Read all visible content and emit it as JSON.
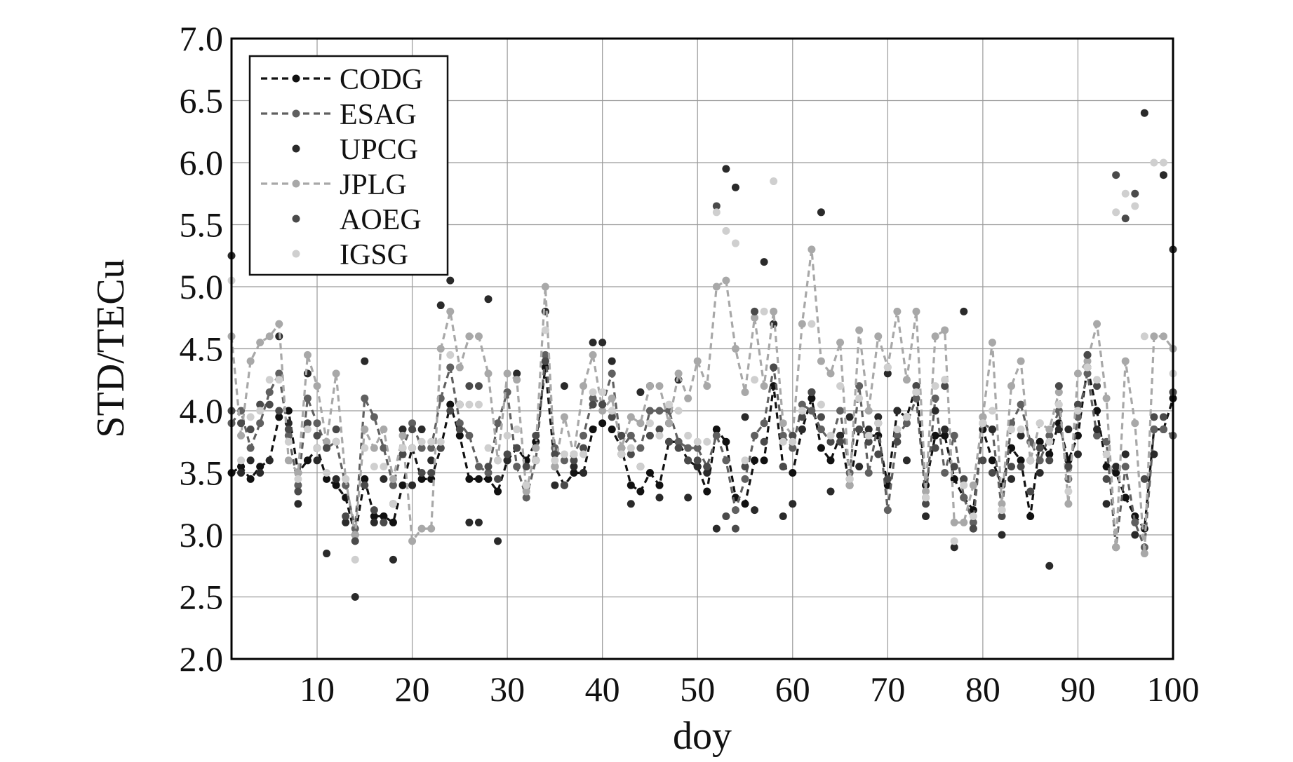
{
  "chart_data": {
    "type": "line",
    "xlabel": "doy",
    "ylabel": "STD/TECu",
    "xlim": [
      1,
      100
    ],
    "ylim": [
      2.0,
      7.0
    ],
    "x_ticks": [
      10,
      20,
      30,
      40,
      50,
      60,
      70,
      80,
      90,
      100
    ],
    "y_ticks": [
      2.0,
      2.5,
      3.0,
      3.5,
      4.0,
      4.5,
      5.0,
      5.5,
      6.0,
      6.5,
      7.0
    ],
    "grid": true,
    "legend_position": "top-left",
    "x": [
      1,
      2,
      3,
      4,
      5,
      6,
      7,
      8,
      9,
      10,
      11,
      12,
      13,
      14,
      15,
      16,
      17,
      18,
      19,
      20,
      21,
      22,
      23,
      24,
      25,
      26,
      27,
      28,
      29,
      30,
      31,
      32,
      33,
      34,
      35,
      36,
      37,
      38,
      39,
      40,
      41,
      42,
      43,
      44,
      45,
      46,
      47,
      48,
      49,
      50,
      51,
      52,
      53,
      54,
      55,
      56,
      57,
      58,
      59,
      60,
      61,
      62,
      63,
      64,
      65,
      66,
      67,
      68,
      69,
      70,
      71,
      72,
      73,
      74,
      75,
      76,
      77,
      78,
      79,
      80,
      81,
      82,
      83,
      84,
      85,
      86,
      87,
      88,
      89,
      90,
      91,
      92,
      93,
      94,
      95,
      96,
      97,
      98,
      99,
      100
    ],
    "series": [
      {
        "name": "CODG",
        "style": "dashed-line-markers",
        "color": "#111111",
        "values": [
          3.5,
          3.55,
          3.45,
          3.55,
          3.6,
          3.95,
          4.0,
          3.5,
          3.6,
          3.7,
          3.45,
          3.4,
          3.3,
          3.0,
          3.45,
          3.15,
          3.15,
          3.1,
          3.4,
          3.7,
          3.45,
          3.45,
          3.7,
          4.05,
          3.8,
          3.45,
          3.45,
          3.45,
          3.35,
          3.6,
          3.7,
          3.6,
          3.75,
          4.35,
          3.55,
          3.4,
          3.5,
          3.5,
          3.85,
          3.9,
          3.85,
          3.7,
          3.4,
          3.35,
          3.5,
          3.4,
          3.75,
          3.75,
          3.6,
          3.55,
          3.35,
          3.85,
          3.75,
          3.3,
          3.25,
          3.6,
          3.6,
          4.2,
          3.55,
          3.5,
          3.85,
          4.1,
          3.7,
          3.6,
          3.8,
          3.4,
          3.85,
          3.8,
          3.8,
          3.4,
          4.0,
          3.95,
          4.2,
          3.4,
          3.8,
          3.8,
          3.45,
          3.3,
          3.2,
          3.85,
          3.6,
          3.4,
          3.7,
          3.6,
          3.15,
          3.75,
          3.65,
          3.9,
          3.6,
          3.8,
          4.35,
          4.0,
          3.55,
          3.5,
          3.3,
          3.15,
          3.05,
          3.85,
          3.85,
          4.1
        ]
      },
      {
        "name": "ESAG",
        "style": "dashed-line-markers",
        "color": "#606060",
        "values": [
          3.9,
          4.0,
          3.7,
          3.9,
          4.15,
          4.3,
          3.8,
          3.4,
          4.1,
          3.9,
          3.7,
          3.75,
          3.4,
          3.05,
          4.1,
          3.95,
          3.7,
          3.4,
          3.7,
          3.9,
          3.7,
          3.7,
          4.1,
          4.35,
          3.9,
          3.8,
          3.55,
          3.5,
          3.9,
          4.15,
          3.55,
          3.3,
          3.6,
          4.45,
          3.7,
          3.6,
          3.65,
          3.8,
          4.1,
          4.05,
          4.3,
          3.7,
          3.8,
          3.7,
          4.0,
          4.0,
          4.0,
          3.75,
          3.7,
          3.7,
          3.55,
          3.8,
          3.6,
          3.2,
          3.45,
          3.8,
          3.9,
          4.35,
          3.8,
          3.7,
          4.05,
          4.0,
          3.85,
          3.75,
          4.0,
          3.5,
          4.2,
          3.5,
          3.9,
          3.2,
          3.8,
          3.9,
          4.1,
          3.3,
          4.1,
          3.5,
          3.8,
          3.3,
          3.1,
          3.9,
          3.85,
          3.2,
          3.9,
          4.05,
          3.75,
          3.6,
          3.8,
          4.0,
          3.45,
          3.95,
          4.3,
          3.8,
          3.75,
          2.9,
          3.55,
          3.1,
          2.9,
          3.85,
          3.85,
          3.8
        ]
      },
      {
        "name": "UPCG",
        "style": "markers",
        "color": "#2a2a2a",
        "values": [
          5.25,
          3.5,
          3.6,
          3.5,
          3.6,
          4.6,
          3.9,
          3.25,
          4.3,
          3.6,
          2.85,
          3.45,
          3.1,
          2.5,
          4.4,
          3.1,
          3.45,
          2.8,
          3.85,
          3.4,
          3.85,
          3.6,
          4.85,
          5.05,
          4.05,
          3.1,
          3.1,
          4.9,
          2.95,
          3.6,
          4.3,
          3.4,
          3.6,
          4.8,
          3.4,
          4.2,
          3.55,
          3.5,
          4.55,
          4.55,
          4.4,
          3.65,
          3.25,
          4.15,
          4.2,
          3.3,
          3.9,
          4.25,
          3.3,
          3.55,
          3.5,
          3.05,
          5.95,
          5.8,
          3.95,
          3.2,
          5.2,
          4.7,
          3.15,
          3.25,
          3.85,
          4.15,
          5.6,
          3.35,
          3.8,
          3.95,
          3.55,
          3.85,
          3.95,
          4.3,
          4.0,
          3.6,
          4.15,
          3.15,
          4.0,
          3.85,
          2.9,
          4.8,
          3.05,
          3.95,
          3.85,
          3.0,
          3.45,
          3.8,
          3.6,
          3.5,
          2.75,
          3.85,
          3.85,
          3.65,
          4.45,
          3.85,
          3.25,
          3.55,
          3.65,
          3.0,
          6.4,
          3.65,
          5.9,
          5.3
        ]
      },
      {
        "name": "JPLG",
        "style": "dashed-line-markers",
        "color": "#a8a8a8",
        "values": [
          4.6,
          3.8,
          4.4,
          4.55,
          4.6,
          4.7,
          3.6,
          3.5,
          4.45,
          4.2,
          3.75,
          4.3,
          3.45,
          3.0,
          3.85,
          3.7,
          3.85,
          3.45,
          3.8,
          2.95,
          3.05,
          3.05,
          4.5,
          4.8,
          4.35,
          4.6,
          4.6,
          4.3,
          3.6,
          4.3,
          4.25,
          3.35,
          3.7,
          5.0,
          3.55,
          3.95,
          3.65,
          4.2,
          4.45,
          4.0,
          4.1,
          3.7,
          3.95,
          3.9,
          4.2,
          4.2,
          3.9,
          4.3,
          4.1,
          4.4,
          4.2,
          5.0,
          5.05,
          4.5,
          4.15,
          4.75,
          4.2,
          4.8,
          3.9,
          3.8,
          4.7,
          5.3,
          4.4,
          4.3,
          4.55,
          3.4,
          4.65,
          4.0,
          4.6,
          4.35,
          4.8,
          4.25,
          4.8,
          3.35,
          4.6,
          4.65,
          3.1,
          3.1,
          3.4,
          3.95,
          4.55,
          3.25,
          4.2,
          4.4,
          3.6,
          3.9,
          3.85,
          4.15,
          3.25,
          4.3,
          4.4,
          4.7,
          4.1,
          2.9,
          4.4,
          3.9,
          2.85,
          4.6,
          4.6,
          4.5
        ]
      },
      {
        "name": "AOEG",
        "style": "markers",
        "color": "#4a4a4a",
        "values": [
          4.0,
          3.9,
          3.85,
          4.05,
          4.05,
          4.0,
          3.85,
          3.35,
          3.9,
          3.8,
          3.7,
          3.85,
          3.15,
          2.95,
          3.4,
          3.2,
          3.1,
          3.25,
          3.65,
          3.85,
          3.5,
          3.5,
          3.7,
          4.0,
          3.85,
          4.2,
          4.2,
          3.55,
          3.45,
          3.65,
          3.7,
          3.55,
          3.8,
          4.4,
          3.65,
          3.4,
          3.6,
          3.7,
          4.05,
          4.05,
          3.95,
          3.8,
          3.65,
          3.55,
          3.8,
          3.85,
          3.75,
          3.7,
          3.6,
          3.6,
          3.55,
          5.65,
          3.15,
          3.05,
          3.55,
          4.8,
          3.75,
          4.35,
          3.55,
          3.8,
          3.95,
          4.15,
          3.95,
          3.75,
          3.75,
          3.45,
          3.85,
          3.75,
          3.65,
          3.45,
          3.75,
          3.95,
          4.2,
          3.25,
          3.7,
          4.2,
          3.55,
          3.45,
          3.05,
          3.6,
          3.5,
          3.15,
          3.55,
          3.55,
          3.35,
          3.7,
          3.6,
          4.2,
          3.55,
          4.05,
          4.45,
          4.2,
          3.45,
          5.9,
          5.55,
          5.75,
          3.45,
          3.95,
          3.95,
          4.15
        ]
      },
      {
        "name": "IGSG",
        "style": "markers",
        "color": "#cfcfcf",
        "values": [
          5.05,
          3.6,
          3.95,
          4.0,
          4.25,
          4.25,
          3.75,
          3.45,
          3.85,
          3.7,
          3.5,
          3.75,
          3.45,
          2.8,
          3.7,
          3.55,
          3.55,
          3.25,
          3.7,
          3.7,
          3.75,
          3.75,
          3.75,
          4.45,
          4.05,
          4.05,
          4.05,
          3.7,
          3.6,
          3.8,
          3.85,
          3.4,
          3.6,
          4.65,
          3.6,
          3.65,
          3.65,
          3.65,
          4.15,
          4.15,
          4.0,
          3.65,
          3.7,
          3.55,
          3.9,
          3.8,
          4.05,
          4.0,
          3.8,
          3.75,
          3.75,
          5.6,
          5.45,
          5.35,
          3.6,
          4.25,
          4.8,
          5.85,
          3.75,
          3.75,
          4.0,
          4.7,
          4.05,
          3.8,
          4.2,
          3.45,
          4.1,
          3.8,
          3.9,
          4.35,
          3.85,
          3.95,
          4.15,
          3.3,
          4.2,
          4.25,
          2.95,
          3.4,
          3.15,
          3.9,
          4.0,
          3.2,
          3.85,
          3.85,
          3.6,
          3.9,
          3.75,
          4.05,
          3.35,
          4.0,
          4.35,
          4.25,
          3.65,
          5.6,
          5.75,
          5.65,
          4.6,
          6.0,
          6.0,
          4.3
        ]
      }
    ]
  }
}
